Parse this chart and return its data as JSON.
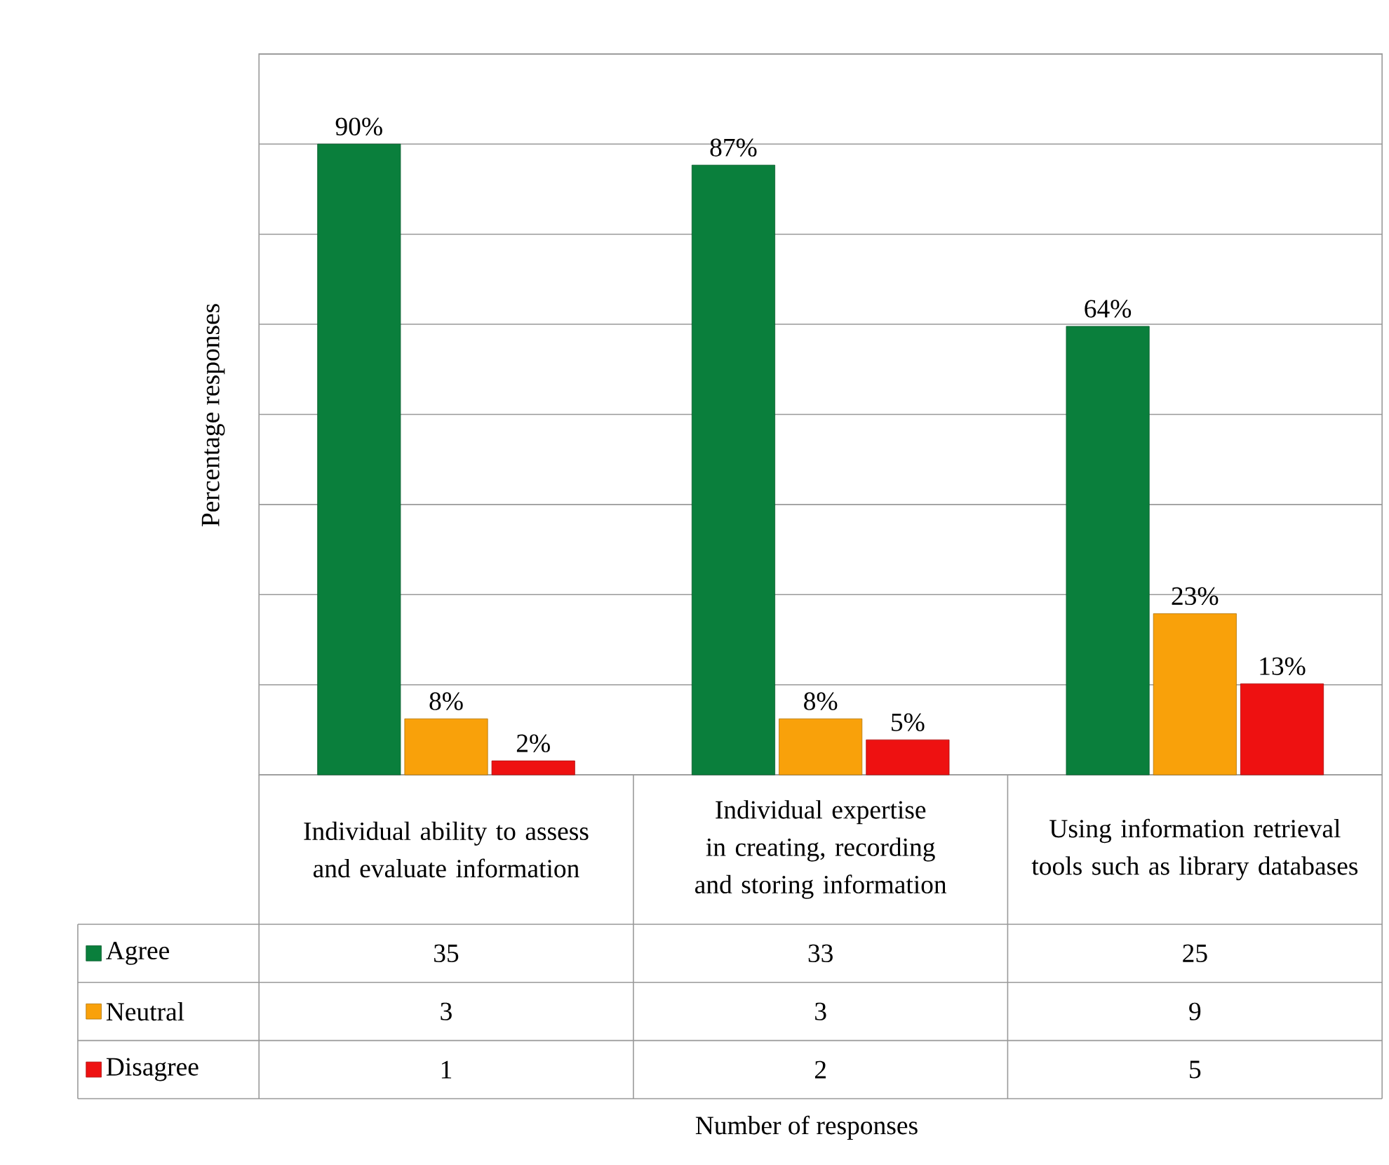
{
  "chart_data": {
    "type": "bar",
    "ylabel": "Percentage responses",
    "categories": [
      "Individual ability to assess and evaluate information",
      "Individual expertise in creating, recording and storing information",
      "Using information retrieval tools such as library databases"
    ],
    "series": [
      {
        "name": "Agree",
        "color": "#0a7f3c",
        "values": [
          90,
          87,
          64
        ],
        "value_labels": [
          "90%",
          "87%",
          "64%"
        ]
      },
      {
        "name": "Neutral",
        "color": "#f9a10a",
        "values": [
          8,
          8,
          23
        ],
        "value_labels": [
          "8%",
          "8%",
          "23%"
        ]
      },
      {
        "name": "Disagree",
        "color": "#ee1111",
        "values": [
          2,
          5,
          13
        ],
        "value_labels": [
          "2%",
          "5%",
          "13%"
        ]
      }
    ],
    "annotations": [
      "Number of responses",
      "35",
      "33",
      "25",
      "3",
      "3",
      "9",
      "1",
      "2",
      "5"
    ],
    "grid": "y",
    "tick_labels": "x",
    "legend": "bottom"
  }
}
